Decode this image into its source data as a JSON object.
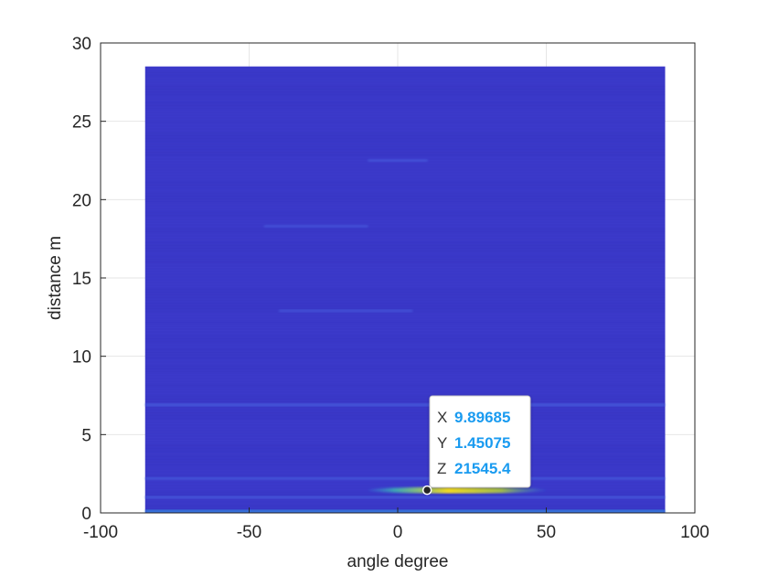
{
  "chart_data": {
    "type": "heatmap",
    "title": "",
    "xlabel": "angle degree",
    "ylabel": "distance m",
    "xlim": [
      -100,
      100
    ],
    "ylim": [
      0,
      30
    ],
    "x_ticks": [
      -100,
      -50,
      0,
      50,
      100
    ],
    "y_ticks": [
      0,
      5,
      10,
      15,
      20,
      25,
      30
    ],
    "x_tick_labels": [
      "-100",
      "-50",
      "0",
      "50",
      "100"
    ],
    "y_tick_labels": [
      "0",
      "5",
      "10",
      "15",
      "20",
      "25",
      "30"
    ],
    "data_extent": {
      "x": [
        -85,
        90
      ],
      "y": [
        0,
        28.5
      ]
    },
    "grid": true,
    "colormap": "parula",
    "colors": {
      "background": "#3a38c8",
      "grid": "#e6e6e6",
      "axis": "#262626"
    },
    "features": [
      {
        "x_range": [
          -85,
          90
        ],
        "y": 0.1,
        "intensity": 0.35
      },
      {
        "x_range": [
          -85,
          90
        ],
        "y": 1.0,
        "intensity": 0.2
      },
      {
        "x_range": [
          -85,
          90
        ],
        "y": 2.2,
        "intensity": 0.2
      },
      {
        "x_range": [
          -85,
          90
        ],
        "y": 6.9,
        "intensity": 0.25
      },
      {
        "x_range": [
          -10,
          10
        ],
        "y": 22.5,
        "intensity": 0.12
      },
      {
        "x_range": [
          -45,
          -10
        ],
        "y": 18.3,
        "intensity": 0.08
      },
      {
        "x_range": [
          -40,
          5
        ],
        "y": 12.9,
        "intensity": 0.1
      },
      {
        "x_range": [
          -10,
          50
        ],
        "y": 1.45,
        "intensity": 1.0
      }
    ],
    "datatip": {
      "X": "9.89685",
      "Y": "1.45075",
      "Z": "21545.4",
      "x": 9.89685,
      "y": 1.45075
    }
  }
}
